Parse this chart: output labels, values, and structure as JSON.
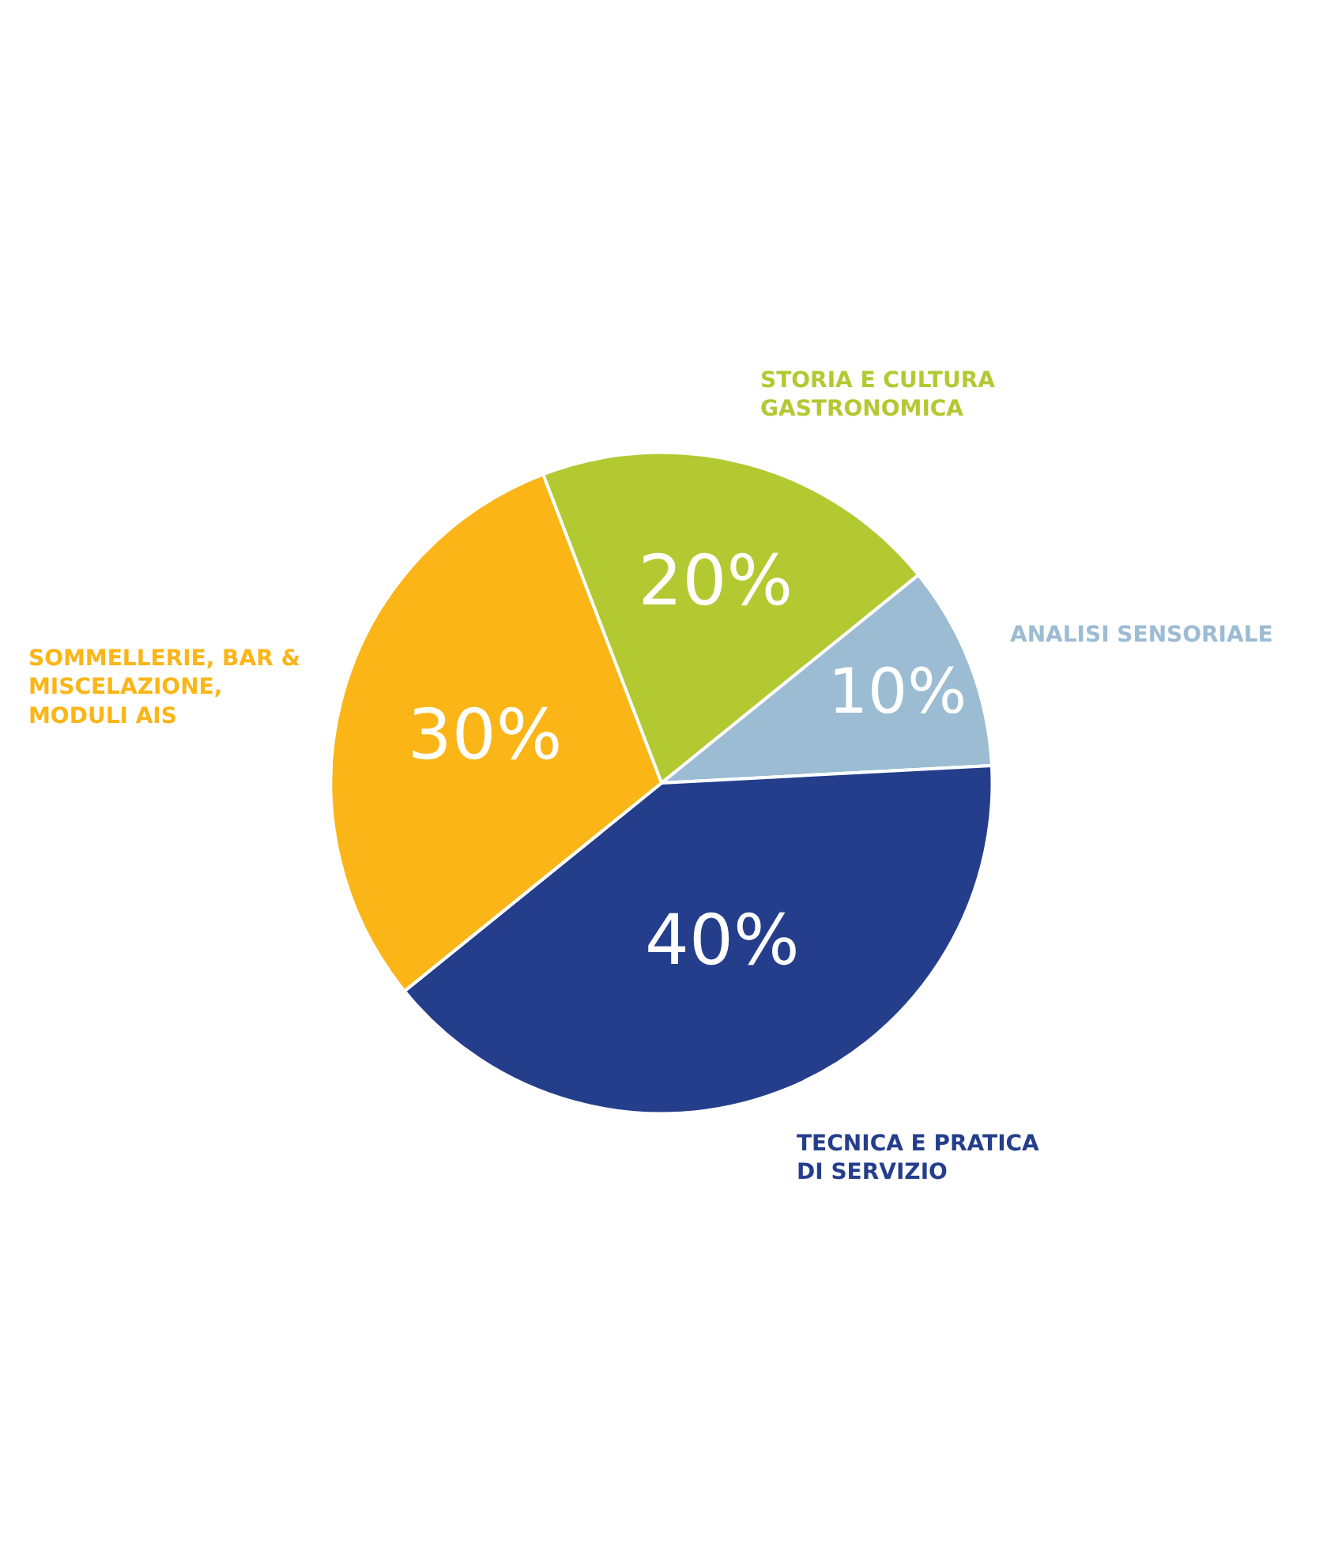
{
  "chart_data": {
    "type": "pie",
    "categories": [
      "STORIA E CULTURA GASTRONOMICA",
      "ANALISI SENSORIALE",
      "TECNICA E PRATICA DI SERVIZIO",
      "SOMMELLERIE, BAR & MISCELAZIONE, MODULI AIS"
    ],
    "values": [
      20,
      10,
      40,
      30
    ],
    "colors": [
      "#b2c932",
      "#9bbcd3",
      "#243e8c",
      "#fbb516"
    ],
    "value_labels": [
      "20%",
      "10%",
      "40%",
      "30%"
    ],
    "legend": false
  }
}
